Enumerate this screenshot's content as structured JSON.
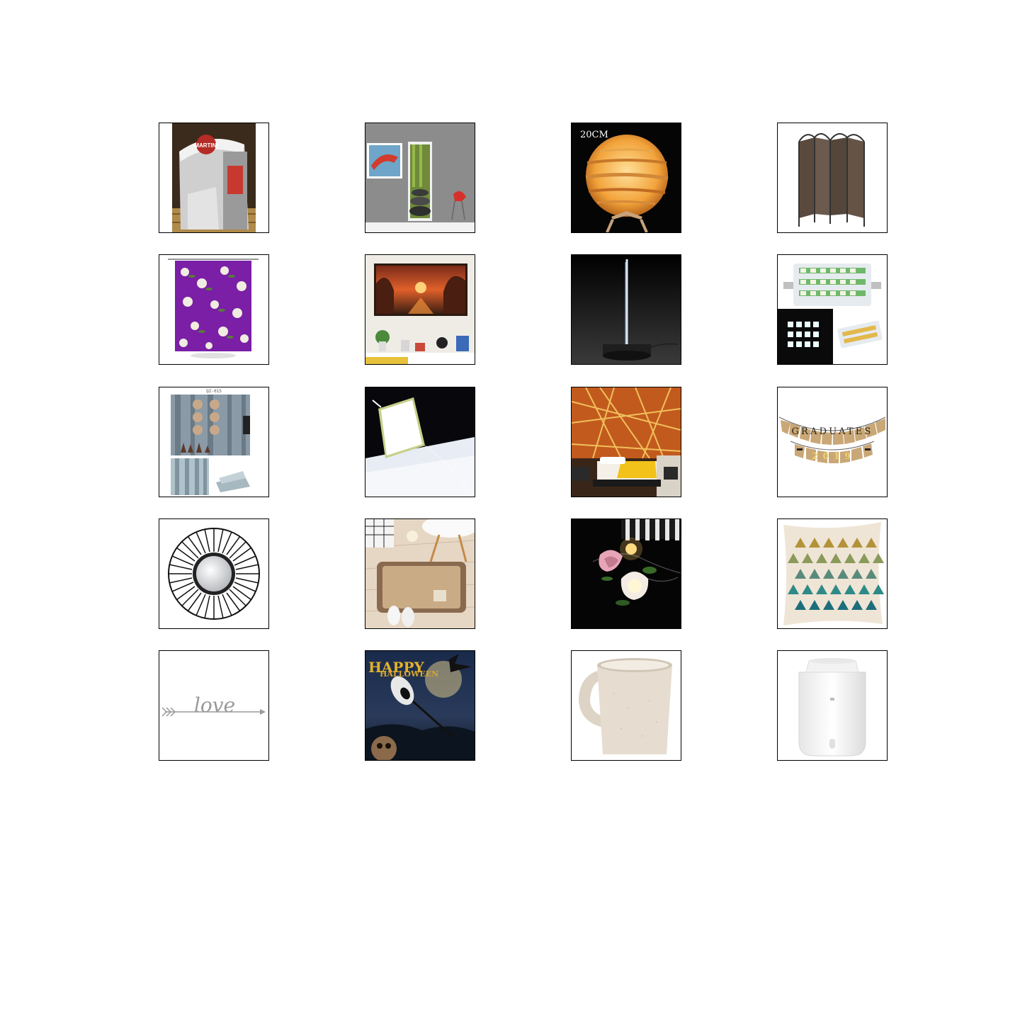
{
  "grid": {
    "tiles": [
      {
        "icon": "napkin-dispenser-icon",
        "text": "MARTINI"
      },
      {
        "icon": "zen-door-mural-icon"
      },
      {
        "icon": "planet-lamp-icon",
        "text": "20CM"
      },
      {
        "icon": "folding-screen-icon"
      },
      {
        "icon": "floral-shower-curtain-icon"
      },
      {
        "icon": "sunset-painting-icon"
      },
      {
        "icon": "acrylic-night-light-icon"
      },
      {
        "icon": "led-bulb-icon"
      },
      {
        "icon": "wood-wallpaper-icon",
        "text": "QZ-015"
      },
      {
        "icon": "led-panel-icon"
      },
      {
        "icon": "bedroom-mural-icon"
      },
      {
        "icon": "graduates-banner-icon",
        "text": "GRADUATES",
        "text2": "2019"
      },
      {
        "icon": "round-mirror-icon"
      },
      {
        "icon": "bath-mat-icon"
      },
      {
        "icon": "rose-string-lights-icon"
      },
      {
        "icon": "triangle-pillow-icon"
      },
      {
        "icon": "love-arrow-decal-icon",
        "text": "love"
      },
      {
        "icon": "halloween-poster-icon",
        "text": "HAPPY",
        "text2": "HALLOWEEN"
      },
      {
        "icon": "wheat-straw-mug-icon"
      },
      {
        "icon": "humidifier-icon"
      }
    ]
  }
}
